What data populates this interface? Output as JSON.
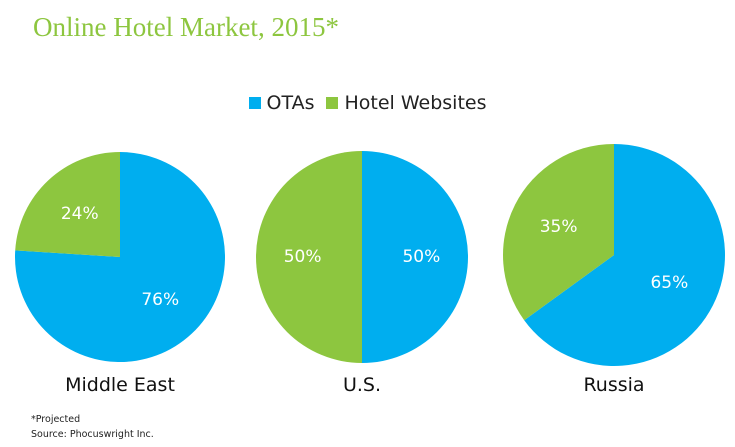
{
  "chart_data": {
    "type": "pie",
    "title": "Online Hotel Market, 2015*",
    "legend": [
      {
        "name": "OTAs",
        "color": "#00aeef"
      },
      {
        "name": "Hotel Websites",
        "color": "#8dc63f"
      }
    ],
    "pies": [
      {
        "region": "Middle East",
        "values": [
          76,
          24
        ],
        "labels": [
          "76%",
          "24%"
        ]
      },
      {
        "region": "U.S.",
        "values": [
          50,
          50
        ],
        "labels": [
          "50%",
          "50%"
        ]
      },
      {
        "region": "Russia",
        "values": [
          65,
          35
        ],
        "labels": [
          "65%",
          "35%"
        ]
      }
    ]
  },
  "footnotes": {
    "projected": "*Projected",
    "source": "Source: Phocuswright Inc."
  }
}
